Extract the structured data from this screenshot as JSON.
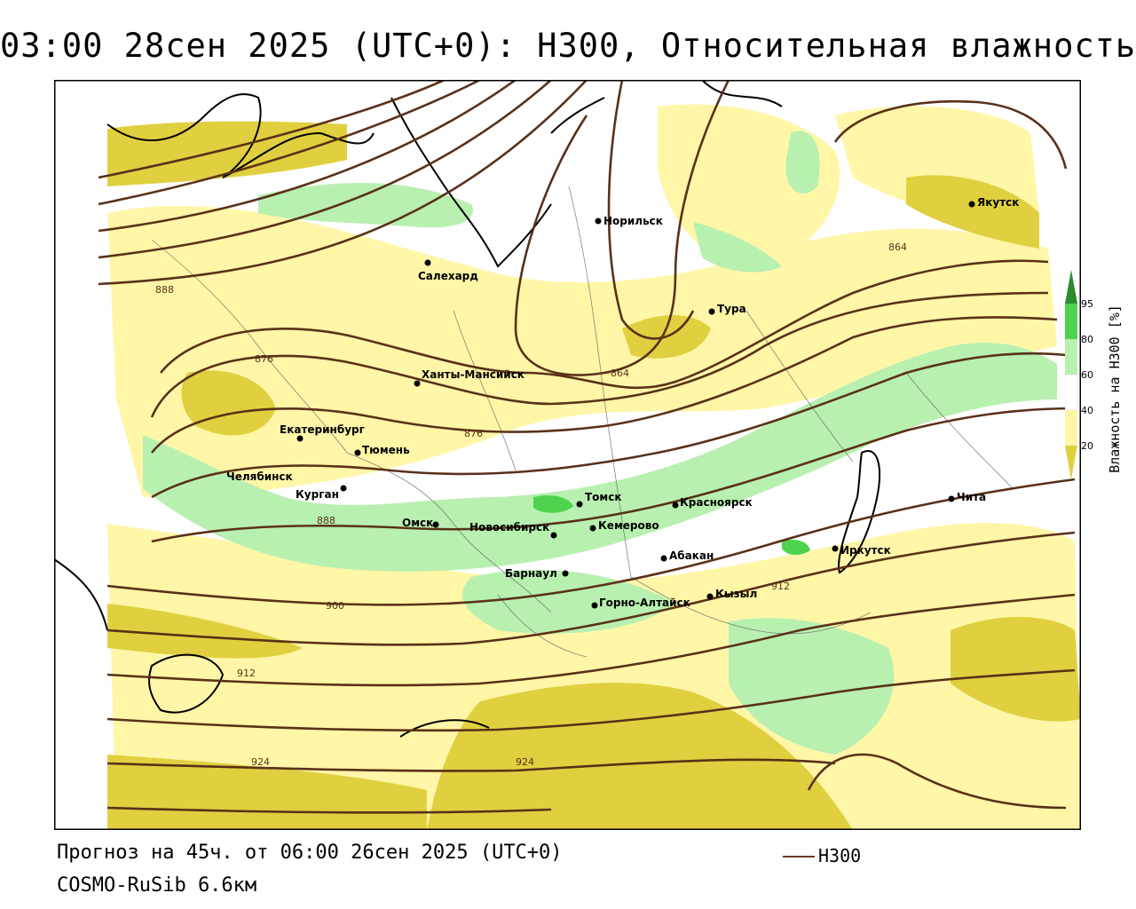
{
  "header": {
    "title": "03:00 28сен 2025 (UTC+0): H300, Относительная влажность"
  },
  "footer": {
    "forecast": "Прогноз на 45ч. от 06:00 26сен 2025 (UTC+0)",
    "model": "COSMO-RuSib 6.6км",
    "legend_label": "H300"
  },
  "colorbar": {
    "title": "Влажность на H300 [%]",
    "ticks": [
      "95",
      "80",
      "60",
      "40",
      "20"
    ],
    "colors": {
      "above95": "#2e8b2e",
      "80_95": "#4fd34f",
      "60_80": "#b8f0b0",
      "40_60": "#ffffff",
      "20_40": "#fff6a8",
      "below20": "#e0d040"
    }
  },
  "cities": [
    {
      "name": "Норильск"
    },
    {
      "name": "Якутск"
    },
    {
      "name": "Салехард"
    },
    {
      "name": "Тура"
    },
    {
      "name": "Ханты-Мансийск"
    },
    {
      "name": "Екатеринбург"
    },
    {
      "name": "Тюмень"
    },
    {
      "name": "Челябинск"
    },
    {
      "name": "Курган"
    },
    {
      "name": "Омск"
    },
    {
      "name": "Новосибирск"
    },
    {
      "name": "Томск"
    },
    {
      "name": "Кемерово"
    },
    {
      "name": "Красноярск"
    },
    {
      "name": "Барнаул"
    },
    {
      "name": "Абакан"
    },
    {
      "name": "Горно-Алтайск"
    },
    {
      "name": "Кызыл"
    },
    {
      "name": "Иркутск"
    },
    {
      "name": "Чита"
    }
  ],
  "isolines": [
    "864",
    "864",
    "876",
    "876",
    "888",
    "888",
    "900",
    "912",
    "912",
    "924",
    "924"
  ],
  "colors": {
    "contour": "#5a3118",
    "coast": "#000000"
  }
}
